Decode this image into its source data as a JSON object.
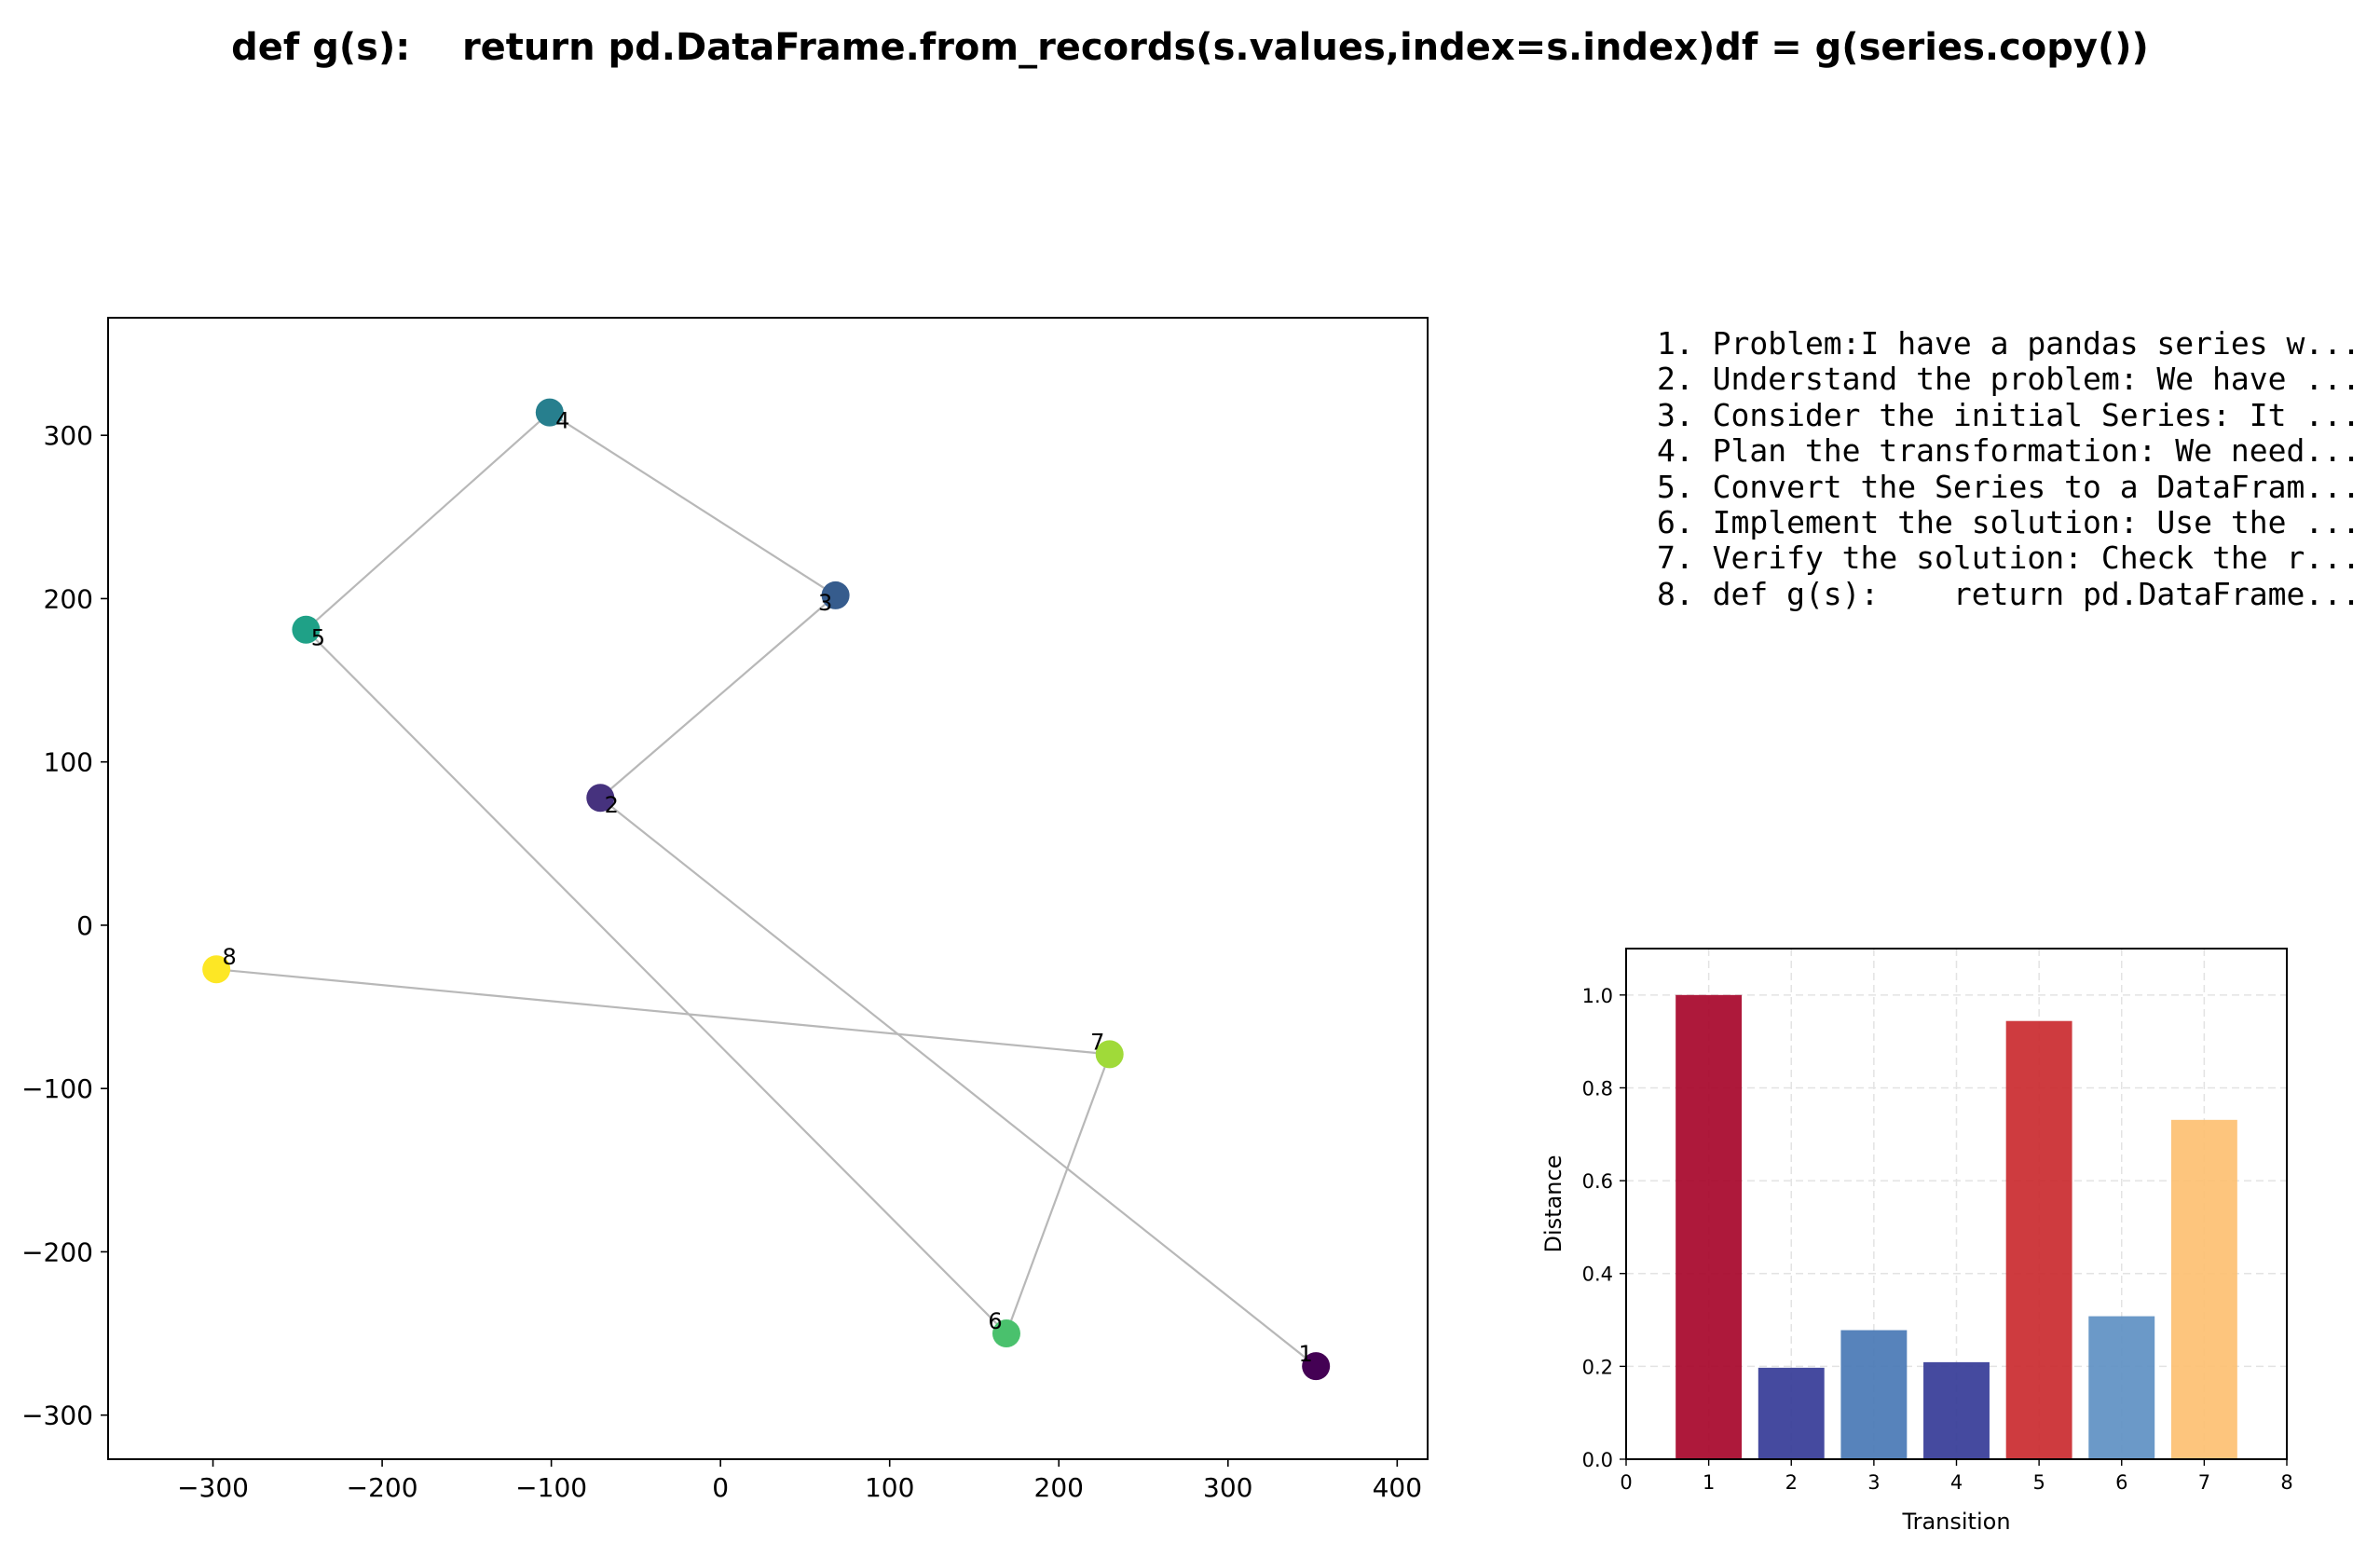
{
  "figure": {
    "title": "def g(s):    return pd.DataFrame.from_records(s.values,index=s.index)df = g(series.copy())"
  },
  "steps": [
    "1. Problem:I have a pandas series w...",
    "2. Understand the problem: We have ...",
    "3. Consider the initial Series: It ...",
    "4. Plan the transformation: We need...",
    "5. Convert the Series to a DataFram...",
    "6. Implement the solution: Use the ...",
    "7. Verify the solution: Check the r...",
    "8. def g(s):    return pd.DataFrame..."
  ],
  "chart_data": [
    {
      "type": "scatter",
      "title": "",
      "xlabel": "",
      "ylabel": "",
      "xlim": [
        -362,
        418
      ],
      "ylim": [
        -327,
        372
      ],
      "xticks": [
        -300,
        -200,
        -100,
        0,
        100,
        200,
        300,
        400
      ],
      "yticks": [
        -300,
        -200,
        -100,
        0,
        100,
        200,
        300
      ],
      "xtick_labels": [
        "−300",
        "−200",
        "−100",
        "0",
        "100",
        "200",
        "300",
        "400"
      ],
      "ytick_labels": [
        "−300",
        "−200",
        "−100",
        "0",
        "100",
        "200",
        "300"
      ],
      "connected": true,
      "line_color": "#b8b8b8",
      "colormap": "viridis",
      "points": [
        {
          "label": "1",
          "x": 352,
          "y": -270,
          "color": "#440154"
        },
        {
          "label": "2",
          "x": -71,
          "y": 78,
          "color": "#46327e"
        },
        {
          "label": "3",
          "x": 68,
          "y": 202,
          "color": "#365c8d"
        },
        {
          "label": "4",
          "x": -101,
          "y": 314,
          "color": "#277f8e"
        },
        {
          "label": "5",
          "x": -245,
          "y": 181,
          "color": "#1fa187"
        },
        {
          "label": "6",
          "x": 169,
          "y": -250,
          "color": "#4ac16d"
        },
        {
          "label": "7",
          "x": 230,
          "y": -79,
          "color": "#a0da39"
        },
        {
          "label": "8",
          "x": -298,
          "y": -27,
          "color": "#fde725"
        }
      ]
    },
    {
      "type": "bar",
      "title": "",
      "xlabel": "Transition",
      "ylabel": "Distance",
      "xlim": [
        0,
        8
      ],
      "ylim": [
        0,
        1.1
      ],
      "xticks": [
        0,
        1,
        2,
        3,
        4,
        5,
        6,
        7,
        8
      ],
      "yticks": [
        0.0,
        0.2,
        0.4,
        0.6,
        0.8,
        1.0
      ],
      "xtick_labels": [
        "0",
        "1",
        "2",
        "3",
        "4",
        "5",
        "6",
        "7",
        "8"
      ],
      "ytick_labels": [
        "0.0",
        "0.2",
        "0.4",
        "0.6",
        "0.8",
        "1.0"
      ],
      "grid": true,
      "colormap": "RdYlBu_r",
      "categories": [
        1,
        2,
        3,
        4,
        5,
        6,
        7
      ],
      "values": [
        1.0,
        0.197,
        0.278,
        0.209,
        0.944,
        0.308,
        0.731
      ],
      "colors": [
        "#a50026",
        "#313695",
        "#4575b4",
        "#313695",
        "#c9262a",
        "#5b8ec2",
        "#fdbf6f"
      ]
    }
  ]
}
